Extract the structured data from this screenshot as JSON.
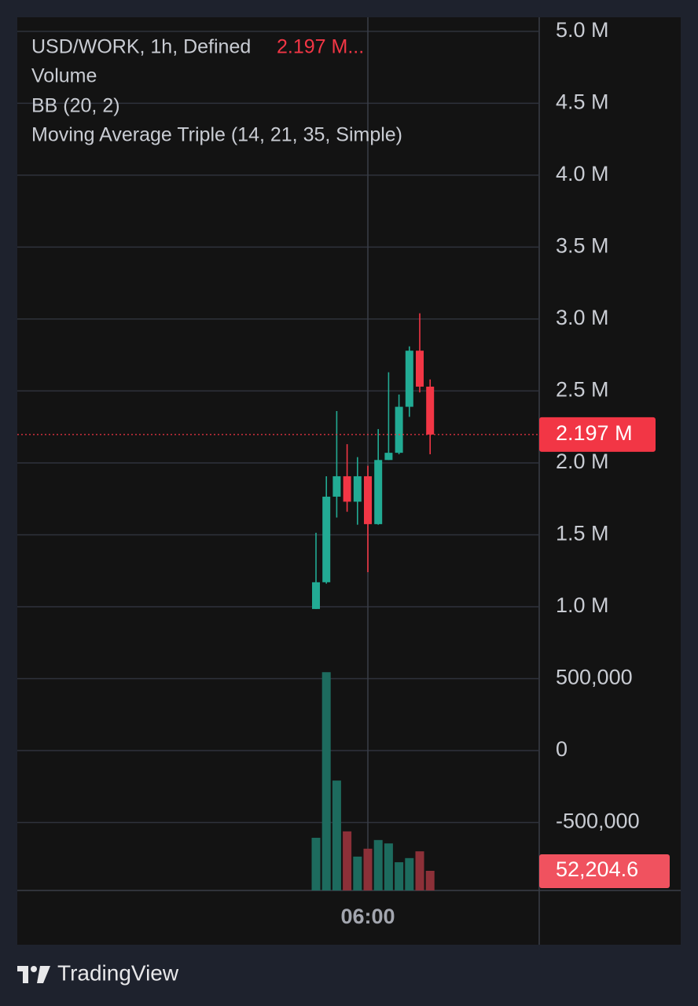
{
  "chart_data": {
    "type": "candlestick",
    "symbol": "USD/WORK, 1h, Defined",
    "header_price": "2.197 M...",
    "indicators": [
      "Volume",
      "BB (20, 2)",
      "Moving Average Triple (14, 21, 35, Simple)"
    ],
    "categories": [
      null,
      null,
      null,
      null,
      null,
      "06:00",
      null,
      null,
      null,
      null,
      null,
      null
    ],
    "open": [
      984000,
      1170000,
      1765000,
      1907000,
      1730000,
      1907000,
      1574000,
      2020000,
      2070000,
      2390000,
      2780000,
      2530000
    ],
    "high": [
      1514000,
      1907000,
      2360000,
      2130000,
      2040000,
      1980000,
      2235000,
      2630000,
      2475000,
      2810000,
      3040000,
      2580000
    ],
    "low": [
      984000,
      1160000,
      1620000,
      1660000,
      1570000,
      1240000,
      1570000,
      2020000,
      2060000,
      2320000,
      2490000,
      2060000
    ],
    "close": [
      1170000,
      1765000,
      1907000,
      1730000,
      1907000,
      1574000,
      2020000,
      2070000,
      2390000,
      2780000,
      2530000,
      2197000
    ],
    "last_price_label": "2.197 M",
    "up_color": "#22ab94",
    "down_color": "#f23645",
    "volume": {
      "values": [
        140000,
        580000,
        292000,
        157000,
        90000,
        111000,
        134000,
        125000,
        75000,
        86000,
        104000,
        52204.6
      ],
      "last_value_label": "52,204.6",
      "up_color": "#1d6b5e",
      "down_color": "#8c3038",
      "ylim": [
        0,
        2320000
      ]
    },
    "ylim": [
      -973000,
      5098000
    ],
    "yticks": [
      {
        "value": 5000000,
        "label": "5.0 M"
      },
      {
        "value": 4500000,
        "label": "4.5 M"
      },
      {
        "value": 4000000,
        "label": "4.0 M"
      },
      {
        "value": 3500000,
        "label": "3.5 M"
      },
      {
        "value": 3000000,
        "label": "3.0 M"
      },
      {
        "value": 2500000,
        "label": "2.5 M"
      },
      {
        "value": 2000000,
        "label": "2.0 M"
      },
      {
        "value": 1500000,
        "label": "1.5 M"
      },
      {
        "value": 1000000,
        "label": "1.0 M"
      },
      {
        "value": 500000,
        "label": "500,000"
      },
      0,
      {
        "value": -500000,
        "label": "-500,000"
      }
    ],
    "grid": true
  },
  "branding": {
    "name": "TradingView"
  }
}
